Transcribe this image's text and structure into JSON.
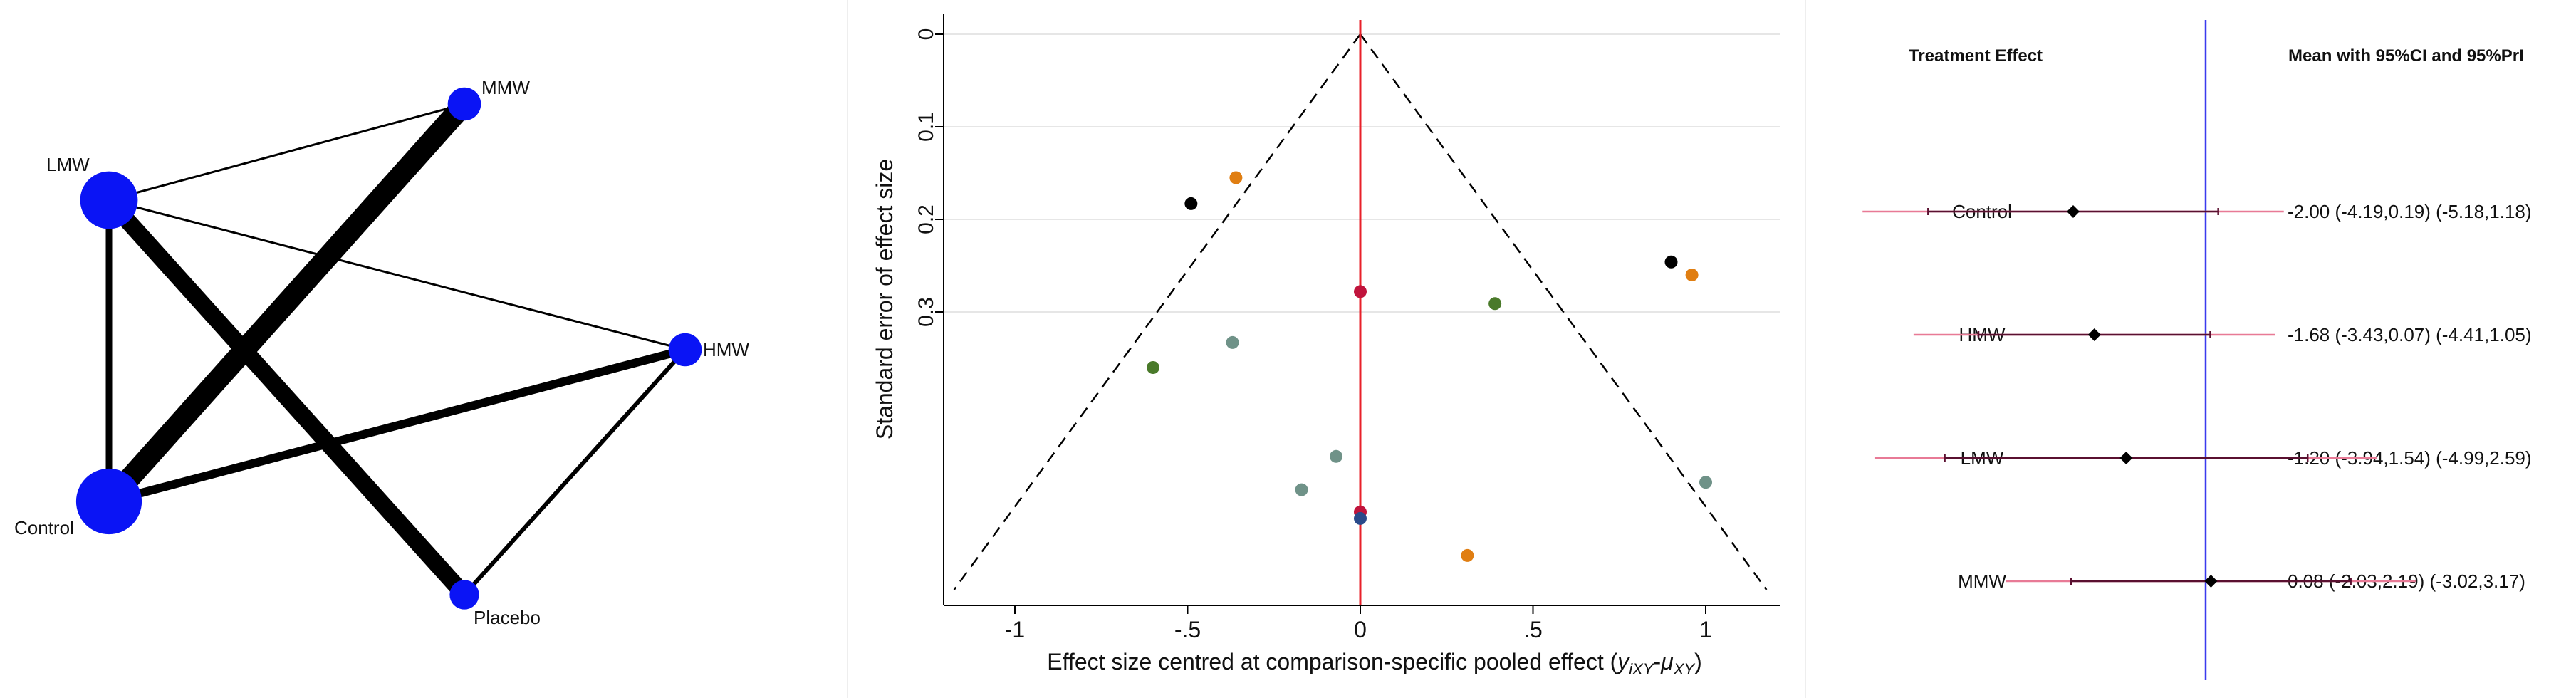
{
  "network_plot": {
    "nodes": [
      {
        "id": "MMW",
        "label": "MMW",
        "relative_size": 0.35
      },
      {
        "id": "LMW",
        "label": "LMW",
        "relative_size": 0.8
      },
      {
        "id": "HMW",
        "label": "HMW",
        "relative_size": 0.35
      },
      {
        "id": "Control",
        "label": "Control",
        "relative_size": 0.95
      },
      {
        "id": "Placebo",
        "label": "Placebo",
        "relative_size": 0.28
      }
    ],
    "edges": [
      {
        "from": "Control",
        "to": "MMW",
        "relative_weight": 10
      },
      {
        "from": "LMW",
        "to": "Placebo",
        "relative_weight": 8
      },
      {
        "from": "Control",
        "to": "HMW",
        "relative_weight": 4
      },
      {
        "from": "LMW",
        "to": "Control",
        "relative_weight": 3
      },
      {
        "from": "HMW",
        "to": "Placebo",
        "relative_weight": 2
      },
      {
        "from": "LMW",
        "to": "MMW",
        "relative_weight": 1
      },
      {
        "from": "LMW",
        "to": "HMW",
        "relative_weight": 1
      }
    ],
    "node_color": "#0a14f5",
    "edge_color": "#000000"
  },
  "chart_data": [
    {
      "type": "scatter",
      "name": "comparison-adjusted funnel plot",
      "xlabel_main": "Effect size centred at comparison-specific pooled effect (",
      "xlabel_y": "y",
      "xlabel_y_sub": "iXY",
      "xlabel_dash": "-",
      "xlabel_mu": "μ",
      "xlabel_mu_sub": "XY",
      "xlabel_close": ")",
      "ylabel": "Standard error of effect size",
      "xlim": [
        -1.2,
        1.2
      ],
      "ylim": [
        0,
        0.6
      ],
      "y_reversed": true,
      "xticks": [
        -1,
        -0.5,
        0,
        0.5,
        1
      ],
      "xtick_labels": [
        "-1",
        "-.5",
        "0",
        ".5",
        "1"
      ],
      "yticks": [
        0,
        0.1,
        0.2,
        0.3
      ],
      "ytick_labels": [
        "0",
        "0.1",
        "0.2",
        "0.3"
      ],
      "funnel_apex": [
        0,
        0
      ],
      "funnel_base_y": 0.6,
      "funnel_half_width_at_base": 1.176,
      "reference_line_x": 0,
      "reference_line_color": "#e8202a",
      "points": [
        {
          "x": -0.36,
          "y": 0.155,
          "color": "#e07e12"
        },
        {
          "x": -0.49,
          "y": 0.183,
          "color": "#000000"
        },
        {
          "x": 0.9,
          "y": 0.246,
          "color": "#000000"
        },
        {
          "x": 0.96,
          "y": 0.26,
          "color": "#e07e12"
        },
        {
          "x": 0.0,
          "y": 0.278,
          "color": "#c0143c"
        },
        {
          "x": 0.39,
          "y": 0.291,
          "color": "#4a7a2a"
        },
        {
          "x": -0.37,
          "y": 0.333,
          "color": "#6f9288"
        },
        {
          "x": -0.6,
          "y": 0.36,
          "color": "#4a7a2a"
        },
        {
          "x": -0.07,
          "y": 0.456,
          "color": "#6f9288"
        },
        {
          "x": -0.17,
          "y": 0.492,
          "color": "#6f9288"
        },
        {
          "x": 1.0,
          "y": 0.484,
          "color": "#6f9288"
        },
        {
          "x": 0.0,
          "y": 0.516,
          "color": "#c0143c"
        },
        {
          "x": 0.0,
          "y": 0.523,
          "color": "#2a4a8a"
        },
        {
          "x": 0.31,
          "y": 0.563,
          "color": "#e07e12"
        }
      ]
    },
    {
      "type": "forest",
      "name": "treatment effect forest plot",
      "header_left": "Treatment Effect",
      "header_right": "Mean with 95%CI and 95%PrI",
      "xlim": [
        -6.0,
        4.5
      ],
      "reference_line_x": 0,
      "reference_line_color": "#3a3aee",
      "ci_color": "#5a1030",
      "pri_color": "#e87a96",
      "rows": [
        {
          "label": "Control",
          "mean": -2.0,
          "ci": [
            -4.19,
            0.19
          ],
          "pri": [
            -5.18,
            1.18
          ],
          "text": "-2.00 (-4.19,0.19)  (-5.18,1.18)"
        },
        {
          "label": "HMW",
          "mean": -1.68,
          "ci": [
            -3.43,
            0.07
          ],
          "pri": [
            -4.41,
            1.05
          ],
          "text": "-1.68 (-3.43,0.07)  (-4.41,1.05)"
        },
        {
          "label": "LMW",
          "mean": -1.2,
          "ci": [
            -3.94,
            1.54
          ],
          "pri": [
            -4.99,
            2.59
          ],
          "text": "-1.20 (-3.94,1.54)  (-4.99,2.59)"
        },
        {
          "label": "MMW",
          "mean": 0.08,
          "ci": [
            -2.03,
            2.19
          ],
          "pri": [
            -3.02,
            3.17
          ],
          "text": "0.08 (-2.03,2.19)  (-3.02,3.17)"
        }
      ]
    }
  ]
}
